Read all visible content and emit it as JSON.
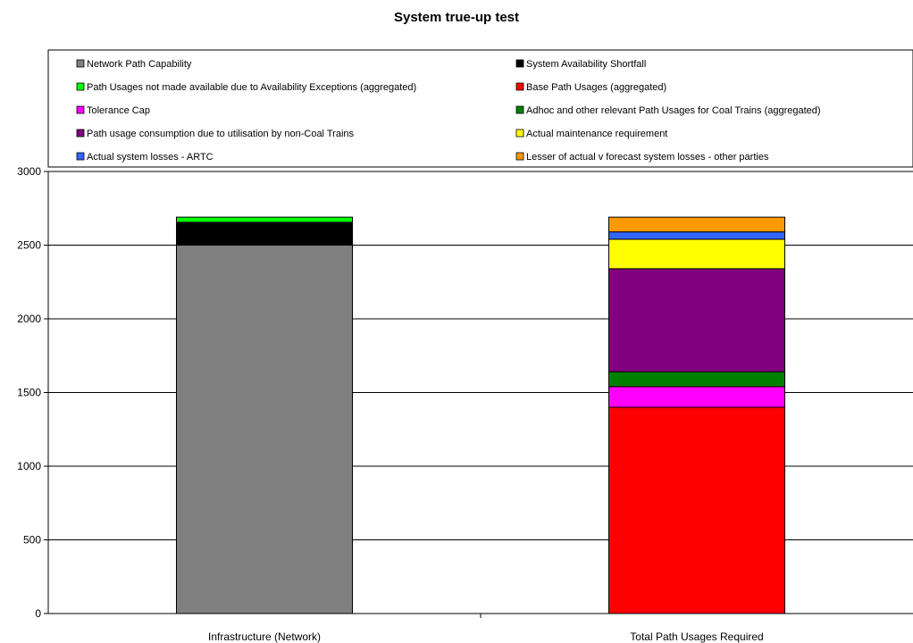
{
  "chart_data": {
    "type": "bar",
    "stacked": true,
    "title": "System true-up test",
    "xlabel": "",
    "ylabel": "",
    "ylim": [
      0,
      3000
    ],
    "y_ticks": [
      "0",
      "500",
      "1000",
      "1500",
      "2000",
      "2500",
      "3000"
    ],
    "categories": [
      "Infrastructure (Network)",
      "Total Path Usages Required"
    ],
    "grid": true,
    "legend_position": "top",
    "series": [
      {
        "name": "Network Path Capability",
        "color": "#808080",
        "values": [
          2500,
          0
        ]
      },
      {
        "name": "System Availability Shortfall",
        "color": "#000000",
        "values": [
          155,
          0
        ]
      },
      {
        "name": "Path Usages not made available due to Availability Exceptions (aggregated)",
        "color": "#00ff00",
        "values": [
          35,
          0
        ]
      },
      {
        "name": "Base Path Usages (aggregated)",
        "color": "#ff0000",
        "values": [
          0,
          1400
        ]
      },
      {
        "name": "Tolerance Cap",
        "color": "#ff00ff",
        "values": [
          0,
          140
        ]
      },
      {
        "name": "Adhoc and other relevant Path Usages for Coal Trains (aggregated)",
        "color": "#008000",
        "values": [
          0,
          100
        ]
      },
      {
        "name": "Path usage consumption due to utilisation by non-Coal Trains",
        "color": "#800080",
        "values": [
          0,
          700
        ]
      },
      {
        "name": "Actual maintenance requirement",
        "color": "#ffff00",
        "values": [
          0,
          200
        ]
      },
      {
        "name": "Actual system losses - ARTC",
        "color": "#3366ff",
        "values": [
          0,
          50
        ]
      },
      {
        "name": "Lesser of actual v forecast system losses - other parties",
        "color": "#ff9900",
        "values": [
          0,
          100
        ]
      }
    ]
  }
}
